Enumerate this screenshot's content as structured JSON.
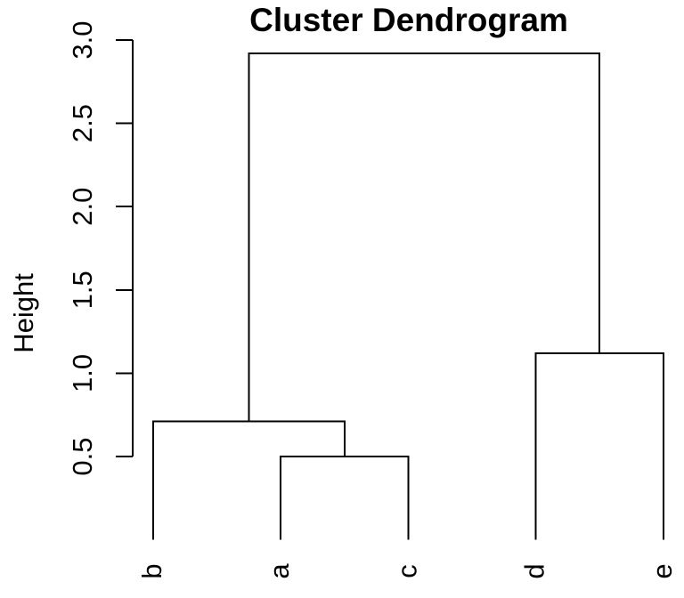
{
  "header": {
    "title": "Cluster Dendrogram"
  },
  "chart_data": {
    "type": "dendrogram",
    "title": "Cluster Dendrogram",
    "xlabel": "",
    "ylabel": "Height",
    "leaf_order": [
      "b",
      "a",
      "c",
      "d",
      "e"
    ],
    "leaf_height": 0,
    "yticks": [
      "0.5",
      "1.0",
      "1.5",
      "2.0",
      "2.5",
      "3.0"
    ],
    "ytick_values": [
      0.5,
      1.0,
      1.5,
      2.0,
      2.5,
      3.0
    ],
    "ylim": [
      0,
      3.0
    ],
    "grid": false,
    "legend": null,
    "merges": [
      {
        "members": [
          "a",
          "c"
        ],
        "height": 0.5
      },
      {
        "members": [
          "b",
          "(a,c)"
        ],
        "height": 0.71
      },
      {
        "members": [
          "d",
          "e"
        ],
        "height": 1.12
      },
      {
        "members": [
          "(b,a,c)",
          "(d,e)"
        ],
        "height": 2.92
      }
    ],
    "tree": {
      "height": 2.92,
      "children": [
        {
          "height": 0.71,
          "children": [
            {
              "leaf": "b"
            },
            {
              "height": 0.5,
              "children": [
                {
                  "leaf": "a"
                },
                {
                  "leaf": "c"
                }
              ]
            }
          ]
        },
        {
          "height": 1.12,
          "children": [
            {
              "leaf": "d"
            },
            {
              "leaf": "e"
            }
          ]
        }
      ]
    },
    "colors": {
      "line": "#000000",
      "text": "#000000",
      "background": "#ffffff"
    }
  }
}
